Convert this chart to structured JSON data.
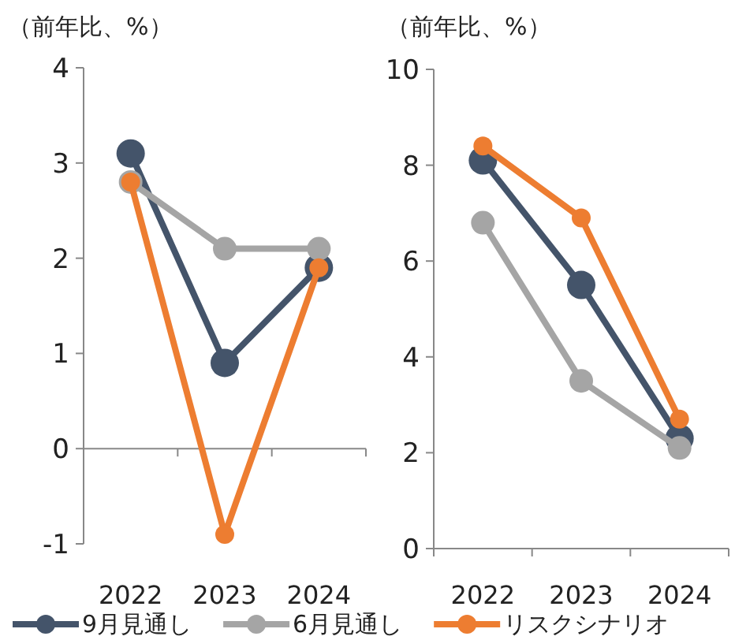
{
  "chart_data": [
    {
      "type": "line",
      "ylabel": "（前年比、%）",
      "categories": [
        "2022",
        "2023",
        "2024"
      ],
      "ylim": [
        -1,
        4
      ],
      "yticks": [
        -1,
        0,
        1,
        2,
        3,
        4
      ],
      "marker": "circle",
      "legend": "bottom",
      "series": [
        {
          "name": "9月見通し",
          "color": "#44546a",
          "values": [
            3.1,
            0.9,
            1.9
          ]
        },
        {
          "name": "6月見通し",
          "color": "#a5a5a5",
          "values": [
            2.8,
            2.1,
            2.1
          ]
        },
        {
          "name": "リスクシナリオ",
          "color": "#ed7d31",
          "values": [
            2.8,
            -0.9,
            1.9
          ]
        }
      ]
    },
    {
      "type": "line",
      "ylabel": "（前年比、%）",
      "categories": [
        "2022",
        "2023",
        "2024"
      ],
      "ylim": [
        0,
        10
      ],
      "yticks": [
        0,
        2,
        4,
        6,
        8,
        10
      ],
      "marker": "circle",
      "series": [
        {
          "color": "#44546a",
          "values": [
            8.1,
            5.5,
            2.3
          ]
        },
        {
          "color": "#a5a5a5",
          "values": [
            6.8,
            3.5,
            2.1
          ]
        },
        {
          "color": "#ed7d31",
          "values": [
            8.4,
            6.9,
            2.7
          ]
        }
      ]
    }
  ]
}
